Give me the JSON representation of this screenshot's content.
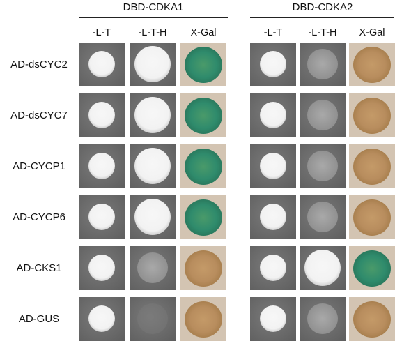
{
  "groups": [
    {
      "label": "DBD-CDKA1",
      "columns": [
        "-L-T",
        "-L-T-H",
        "X-Gal"
      ]
    },
    {
      "label": "DBD-CDKA2",
      "columns": [
        "-L-T",
        "-L-T-H",
        "X-Gal"
      ]
    }
  ],
  "rows": [
    {
      "label": "AD-dsCYC2",
      "cdka1": [
        "growth",
        "growth",
        "blue"
      ],
      "cdka2": [
        "growth",
        "faint",
        "brown"
      ]
    },
    {
      "label": "AD-dsCYC7",
      "cdka1": [
        "growth",
        "growth",
        "blue"
      ],
      "cdka2": [
        "growth",
        "faint",
        "brown"
      ]
    },
    {
      "label": "AD-CYCP1",
      "cdka1": [
        "growth",
        "growth",
        "blue"
      ],
      "cdka2": [
        "growth",
        "faint",
        "brown"
      ]
    },
    {
      "label": "AD-CYCP6",
      "cdka1": [
        "growth",
        "growth",
        "blue"
      ],
      "cdka2": [
        "growth",
        "faint",
        "brown"
      ]
    },
    {
      "label": "AD-CKS1",
      "cdka1": [
        "growth",
        "faint",
        "brown"
      ],
      "cdka2": [
        "growth",
        "growth",
        "blue"
      ]
    },
    {
      "label": "AD-GUS",
      "cdka1": [
        "growth",
        "none",
        "brown"
      ],
      "cdka2": [
        "growth",
        "faint",
        "brown"
      ]
    }
  ],
  "colors": {
    "plate_dark": "#5f5f5f",
    "plate_mid": "#7a7a7a",
    "colony_white": "#f2f2f2",
    "xgal_bg": "#d3c4b2",
    "xgal_brown": "#b88d5e",
    "xgal_blue": "#2f8b6c"
  }
}
